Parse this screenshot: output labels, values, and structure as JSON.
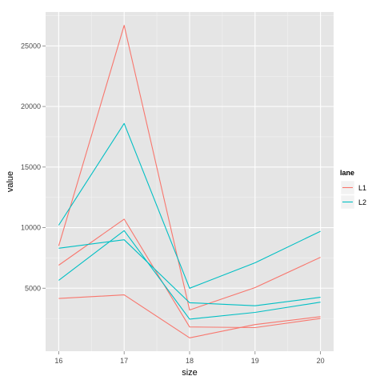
{
  "chart_data": {
    "type": "line",
    "xlabel": "size",
    "ylabel": "value",
    "x_ticks": [
      "16",
      "17",
      "18",
      "19",
      "20"
    ],
    "y_ticks": [
      "5000",
      "10000",
      "15000",
      "20000",
      "25000"
    ],
    "xlim": [
      15.8,
      20.2
    ],
    "ylim": [
      -200,
      27800
    ],
    "grid": true,
    "legend": {
      "title": "lane",
      "position": "right",
      "entries": [
        {
          "label": "L1",
          "color": "#F8766D"
        },
        {
          "label": "L2",
          "color": "#00BFC4"
        }
      ]
    },
    "series": [
      {
        "lane": "L1",
        "x": [
          16,
          17,
          18,
          19,
          20
        ],
        "values": [
          8500,
          26700,
          3200,
          5050,
          7550
        ]
      },
      {
        "lane": "L1",
        "x": [
          16,
          17,
          18,
          19,
          20
        ],
        "values": [
          6900,
          10700,
          1800,
          1750,
          2500
        ]
      },
      {
        "lane": "L1",
        "x": [
          16,
          17,
          18,
          19,
          20
        ],
        "values": [
          4150,
          4450,
          900,
          2000,
          2650
        ]
      },
      {
        "lane": "L2",
        "x": [
          16,
          17,
          18,
          19,
          20
        ],
        "values": [
          10200,
          18600,
          5000,
          7100,
          9700
        ]
      },
      {
        "lane": "L2",
        "x": [
          16,
          17,
          18,
          19,
          20
        ],
        "values": [
          8300,
          9000,
          3800,
          3550,
          4250
        ]
      },
      {
        "lane": "L2",
        "x": [
          16,
          17,
          18,
          19,
          20
        ],
        "values": [
          5650,
          9750,
          2450,
          3000,
          3850
        ]
      }
    ]
  }
}
